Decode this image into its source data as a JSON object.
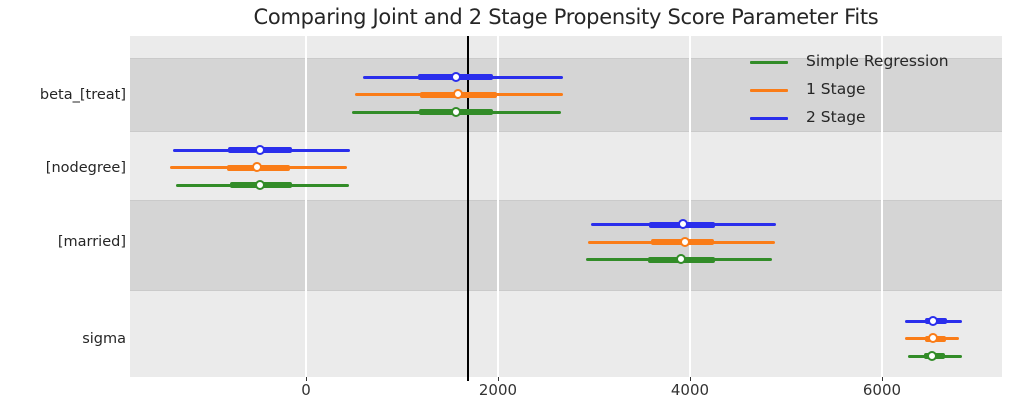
{
  "title": "Comparing Joint and 2 Stage Propensity Score Parameter Fits",
  "chart_data": {
    "type": "forest",
    "title": "Comparing Joint and 2 Stage Propensity Score Parameter Fits",
    "xlabel": "",
    "ylabel": "",
    "xlim": [
      -1833,
      7250
    ],
    "x_ticks": [
      0,
      2000,
      4000,
      6000
    ],
    "grid": "vertical-white-on-gray",
    "reference_line_x": 1690,
    "reference_line_color": "#000000",
    "background_color": "#ebebeb",
    "band_color": "#d5d5d5",
    "legend": {
      "position": "upper right",
      "entries": [
        {
          "label": "Simple Regression",
          "color": "#328c28"
        },
        {
          "label": "1 Stage",
          "color": "#fa7c17"
        },
        {
          "label": "2 Stage",
          "color": "#2a2eec"
        }
      ]
    },
    "marker_style": "open-circle-white-fill",
    "groups": [
      {
        "label": "beta_[treat]",
        "shaded": true,
        "rows": [
          {
            "series": "2 Stage",
            "color": "#2a2eec",
            "point": 1570,
            "ci_inner": [
              1170,
              1950
            ],
            "ci_outer": [
              590,
              2680
            ]
          },
          {
            "series": "1 Stage",
            "color": "#fa7c17",
            "point": 1590,
            "ci_inner": [
              1190,
              1990
            ],
            "ci_outer": [
              510,
              2680
            ]
          },
          {
            "series": "Simple Regression",
            "color": "#328c28",
            "point": 1570,
            "ci_inner": [
              1180,
              1950
            ],
            "ci_outer": [
              480,
              2660
            ]
          }
        ]
      },
      {
        "label": "[nodegree]",
        "shaded": false,
        "rows": [
          {
            "series": "2 Stage",
            "color": "#2a2eec",
            "point": -470,
            "ci_inner": [
              -810,
              -150
            ],
            "ci_outer": [
              -1390,
              460
            ]
          },
          {
            "series": "1 Stage",
            "color": "#fa7c17",
            "point": -500,
            "ci_inner": [
              -820,
              -170
            ],
            "ci_outer": [
              -1420,
              430
            ]
          },
          {
            "series": "Simple Regression",
            "color": "#328c28",
            "point": -470,
            "ci_inner": [
              -790,
              -150
            ],
            "ci_outer": [
              -1350,
              450
            ]
          }
        ]
      },
      {
        "label": "[married]",
        "shaded": true,
        "rows": [
          {
            "series": "2 Stage",
            "color": "#2a2eec",
            "point": 3930,
            "ci_inner": [
              3570,
              4260
            ],
            "ci_outer": [
              2970,
              4900
            ]
          },
          {
            "series": "1 Stage",
            "color": "#fa7c17",
            "point": 3950,
            "ci_inner": [
              3590,
              4250
            ],
            "ci_outer": [
              2940,
              4890
            ]
          },
          {
            "series": "Simple Regression",
            "color": "#328c28",
            "point": 3910,
            "ci_inner": [
              3560,
              4260
            ],
            "ci_outer": [
              2920,
              4850
            ]
          }
        ]
      },
      {
        "label": "sigma",
        "shaded": false,
        "rows": [
          {
            "series": "2 Stage",
            "color": "#2a2eec",
            "point": 6540,
            "ci_inner": [
              6450,
              6680
            ],
            "ci_outer": [
              6240,
              6830
            ]
          },
          {
            "series": "1 Stage",
            "color": "#fa7c17",
            "point": 6540,
            "ci_inner": [
              6450,
              6670
            ],
            "ci_outer": [
              6240,
              6800
            ]
          },
          {
            "series": "Simple Regression",
            "color": "#328c28",
            "point": 6530,
            "ci_inner": [
              6440,
              6660
            ],
            "ci_outer": [
              6270,
              6830
            ]
          }
        ]
      }
    ]
  }
}
